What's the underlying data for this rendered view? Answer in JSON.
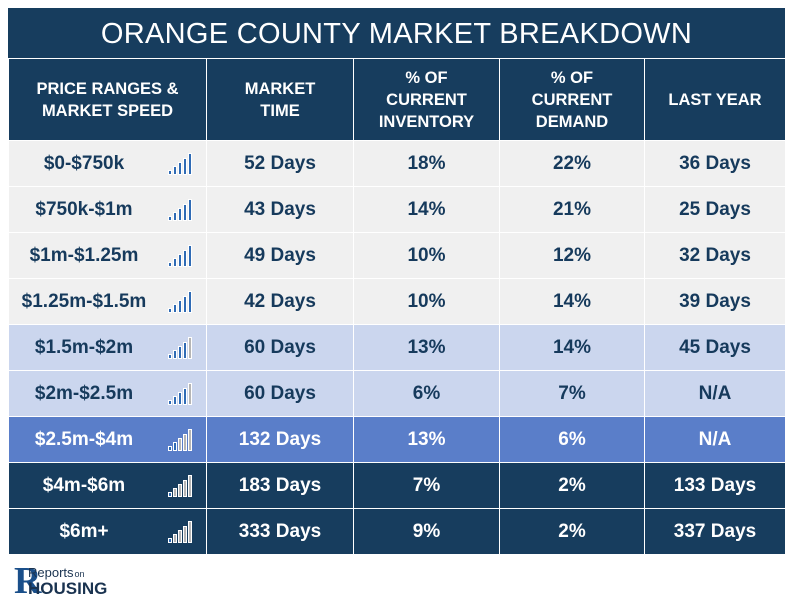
{
  "title": "ORANGE COUNTY MARKET BREAKDOWN",
  "headers": {
    "range": [
      "PRICE RANGES &",
      "MARKET SPEED"
    ],
    "market_time": [
      "MARKET",
      "TIME"
    ],
    "inventory": [
      "% OF",
      "CURRENT",
      "INVENTORY"
    ],
    "demand": [
      "% OF",
      "CURRENT",
      "DEMAND"
    ],
    "last_year": [
      "LAST YEAR"
    ]
  },
  "rows": [
    {
      "range": "$0-$750k",
      "market_time": "52 Days",
      "inventory": "18%",
      "demand": "22%",
      "last_year": "36 Days",
      "tone": "light",
      "speed_bars": 5
    },
    {
      "range": "$750k-$1m",
      "market_time": "43 Days",
      "inventory": "14%",
      "demand": "21%",
      "last_year": "25 Days",
      "tone": "light",
      "speed_bars": 5
    },
    {
      "range": "$1m-$1.25m",
      "market_time": "49 Days",
      "inventory": "10%",
      "demand": "12%",
      "last_year": "32 Days",
      "tone": "light",
      "speed_bars": 5
    },
    {
      "range": "$1.25m-$1.5m",
      "market_time": "42 Days",
      "inventory": "10%",
      "demand": "14%",
      "last_year": "39 Days",
      "tone": "light",
      "speed_bars": 5
    },
    {
      "range": "$1.5m-$2m",
      "market_time": "60 Days",
      "inventory": "13%",
      "demand": "14%",
      "last_year": "45 Days",
      "tone": "mid",
      "speed_bars": 4
    },
    {
      "range": "$2m-$2.5m",
      "market_time": "60 Days",
      "inventory": "6%",
      "demand": "7%",
      "last_year": "N/A",
      "tone": "mid",
      "speed_bars": 4
    },
    {
      "range": "$2.5m-$4m",
      "market_time": "132 Days",
      "inventory": "13%",
      "demand": "6%",
      "last_year": "N/A",
      "tone": "blue",
      "speed_bars": 2
    },
    {
      "range": "$4m-$6m",
      "market_time": "183 Days",
      "inventory": "7%",
      "demand": "2%",
      "last_year": "133 Days",
      "tone": "dark",
      "speed_bars": 1
    },
    {
      "range": "$6m+",
      "market_time": "333 Days",
      "inventory": "9%",
      "demand": "2%",
      "last_year": "337 Days",
      "tone": "dark",
      "speed_bars": 1
    }
  ],
  "logo": {
    "reports": "Reports",
    "on": "on",
    "housing": "HOUSING"
  },
  "colors": {
    "active_bar": "#2f6bb5",
    "inactive_bar": "#b5b5b5"
  }
}
